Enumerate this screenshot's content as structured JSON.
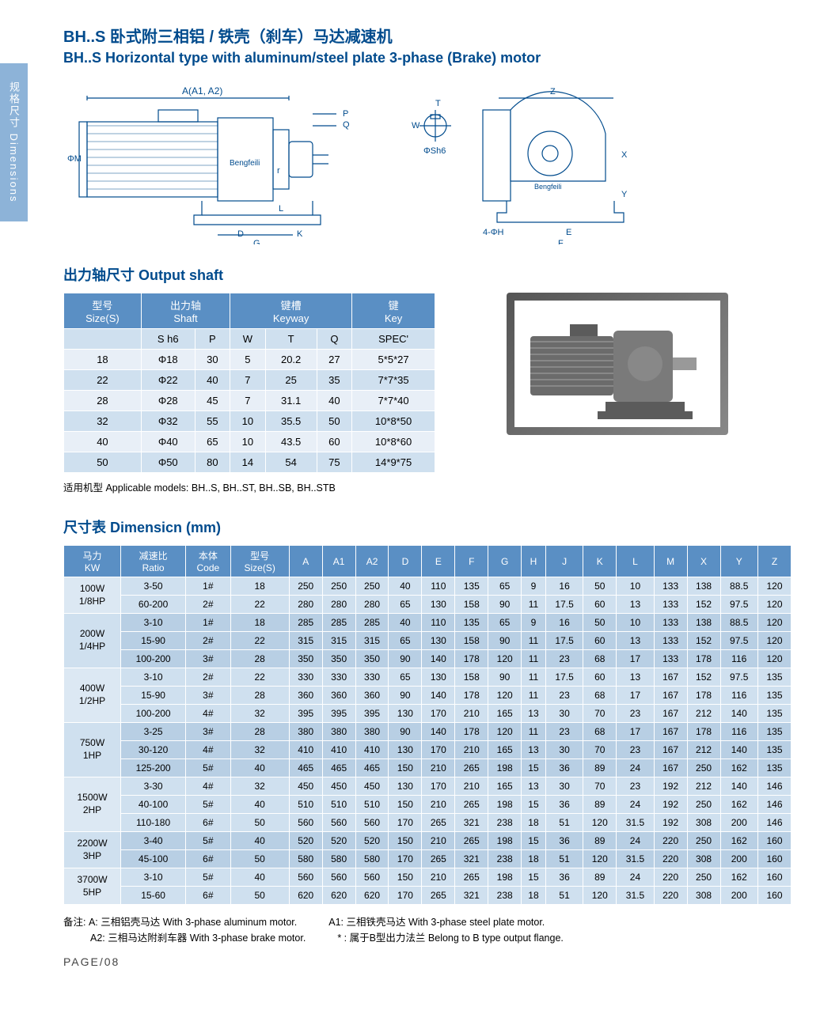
{
  "sideTab": "规格尺寸  Dimensions",
  "titleCn": "BH..S 卧式附三相铝 / 铁壳（刹车）马达减速机",
  "titleEn": "BH..S Horizontal type with aluminum/steel plate 3-phase (Brake) motor",
  "diagramLabels": {
    "A": "A(A1, A2)",
    "P": "P",
    "Q": "Q",
    "r": "r",
    "L": "L",
    "D": "D",
    "K": "K",
    "G": "G",
    "M": "ΦM",
    "T": "T",
    "W": "W",
    "Sh6": "ΦSh6",
    "Z": "Z",
    "X": "X",
    "Y": "Y",
    "E": "E",
    "F": "F",
    "H4": "4-ΦH",
    "logo": "Bengfeili"
  },
  "shaft": {
    "heading": "出力轴尺寸 Output shaft",
    "headers": {
      "size": "型号\nSize(S)",
      "shaft": "出力轴\nShaft",
      "keyway": "键槽\nKeyway",
      "key": "键\nKey"
    },
    "sub": {
      "sh6": "S h6",
      "P": "P",
      "W": "W",
      "T": "T",
      "Q": "Q",
      "spec": "SPEC'"
    },
    "rows": [
      {
        "size": "18",
        "sh6": "Φ18",
        "P": "30",
        "W": "5",
        "T": "20.2",
        "Q": "27",
        "spec": "5*5*27"
      },
      {
        "size": "22",
        "sh6": "Φ22",
        "P": "40",
        "W": "7",
        "T": "25",
        "Q": "35",
        "spec": "7*7*35"
      },
      {
        "size": "28",
        "sh6": "Φ28",
        "P": "45",
        "W": "7",
        "T": "31.1",
        "Q": "40",
        "spec": "7*7*40"
      },
      {
        "size": "32",
        "sh6": "Φ32",
        "P": "55",
        "W": "10",
        "T": "35.5",
        "Q": "50",
        "spec": "10*8*50"
      },
      {
        "size": "40",
        "sh6": "Φ40",
        "P": "65",
        "W": "10",
        "T": "43.5",
        "Q": "60",
        "spec": "10*8*60"
      },
      {
        "size": "50",
        "sh6": "Φ50",
        "P": "80",
        "W": "14",
        "T": "54",
        "Q": "75",
        "spec": "14*9*75"
      }
    ]
  },
  "modelsNote": "适用机型 Applicable models: BH..S, BH..ST, BH..SB, BH..STB",
  "dim": {
    "heading": "尺寸表 Dimensicn (mm)",
    "headers": [
      "马力\nKW",
      "减速比\nRatio",
      "本体\nCode",
      "型号\nSize(S)",
      "A",
      "A1",
      "A2",
      "D",
      "E",
      "F",
      "G",
      "H",
      "J",
      "K",
      "L",
      "M",
      "X",
      "Y",
      "Z"
    ],
    "groups": [
      {
        "kw": "100W\n1/8HP",
        "alt": false,
        "rows": [
          [
            "3-50",
            "1#",
            "18",
            "250",
            "250",
            "250",
            "40",
            "110",
            "135",
            "65",
            "9",
            "16",
            "50",
            "10",
            "133",
            "138",
            "88.5",
            "120"
          ],
          [
            "60-200",
            "2#",
            "22",
            "280",
            "280",
            "280",
            "65",
            "130",
            "158",
            "90",
            "11",
            "17.5",
            "60",
            "13",
            "133",
            "152",
            "97.5",
            "120"
          ]
        ]
      },
      {
        "kw": "200W\n1/4HP",
        "alt": true,
        "rows": [
          [
            "3-10",
            "1#",
            "18",
            "285",
            "285",
            "285",
            "40",
            "110",
            "135",
            "65",
            "9",
            "16",
            "50",
            "10",
            "133",
            "138",
            "88.5",
            "120"
          ],
          [
            "15-90",
            "2#",
            "22",
            "315",
            "315",
            "315",
            "65",
            "130",
            "158",
            "90",
            "11",
            "17.5",
            "60",
            "13",
            "133",
            "152",
            "97.5",
            "120"
          ],
          [
            "100-200",
            "3#",
            "28",
            "350",
            "350",
            "350",
            "90",
            "140",
            "178",
            "120",
            "11",
            "23",
            "68",
            "17",
            "133",
            "178",
            "116",
            "120"
          ]
        ]
      },
      {
        "kw": "400W\n1/2HP",
        "alt": false,
        "rows": [
          [
            "3-10",
            "2#",
            "22",
            "330",
            "330",
            "330",
            "65",
            "130",
            "158",
            "90",
            "11",
            "17.5",
            "60",
            "13",
            "167",
            "152",
            "97.5",
            "135"
          ],
          [
            "15-90",
            "3#",
            "28",
            "360",
            "360",
            "360",
            "90",
            "140",
            "178",
            "120",
            "11",
            "23",
            "68",
            "17",
            "167",
            "178",
            "116",
            "135"
          ],
          [
            "100-200",
            "4#",
            "32",
            "395",
            "395",
            "395",
            "130",
            "170",
            "210",
            "165",
            "13",
            "30",
            "70",
            "23",
            "167",
            "212",
            "140",
            "135"
          ]
        ]
      },
      {
        "kw": "750W\n1HP",
        "alt": true,
        "rows": [
          [
            "3-25",
            "3#",
            "28",
            "380",
            "380",
            "380",
            "90",
            "140",
            "178",
            "120",
            "11",
            "23",
            "68",
            "17",
            "167",
            "178",
            "116",
            "135"
          ],
          [
            "30-120",
            "4#",
            "32",
            "410",
            "410",
            "410",
            "130",
            "170",
            "210",
            "165",
            "13",
            "30",
            "70",
            "23",
            "167",
            "212",
            "140",
            "135"
          ],
          [
            "125-200",
            "5#",
            "40",
            "465",
            "465",
            "465",
            "150",
            "210",
            "265",
            "198",
            "15",
            "36",
            "89",
            "24",
            "167",
            "250",
            "162",
            "135"
          ]
        ]
      },
      {
        "kw": "1500W\n2HP",
        "alt": false,
        "rows": [
          [
            "3-30",
            "4#",
            "32",
            "450",
            "450",
            "450",
            "130",
            "170",
            "210",
            "165",
            "13",
            "30",
            "70",
            "23",
            "192",
            "212",
            "140",
            "146"
          ],
          [
            "40-100",
            "5#",
            "40",
            "510",
            "510",
            "510",
            "150",
            "210",
            "265",
            "198",
            "15",
            "36",
            "89",
            "24",
            "192",
            "250",
            "162",
            "146"
          ],
          [
            "110-180",
            "6#",
            "50",
            "560",
            "560",
            "560",
            "170",
            "265",
            "321",
            "238",
            "18",
            "51",
            "120",
            "31.5",
            "192",
            "308",
            "200",
            "146"
          ]
        ]
      },
      {
        "kw": "2200W\n3HP",
        "alt": true,
        "rows": [
          [
            "3-40",
            "5#",
            "40",
            "520",
            "520",
            "520",
            "150",
            "210",
            "265",
            "198",
            "15",
            "36",
            "89",
            "24",
            "220",
            "250",
            "162",
            "160"
          ],
          [
            "45-100",
            "6#",
            "50",
            "580",
            "580",
            "580",
            "170",
            "265",
            "321",
            "238",
            "18",
            "51",
            "120",
            "31.5",
            "220",
            "308",
            "200",
            "160"
          ]
        ]
      },
      {
        "kw": "3700W\n5HP",
        "alt": false,
        "rows": [
          [
            "3-10",
            "5#",
            "40",
            "560",
            "560",
            "560",
            "150",
            "210",
            "265",
            "198",
            "15",
            "36",
            "89",
            "24",
            "220",
            "250",
            "162",
            "160"
          ],
          [
            "15-60",
            "6#",
            "50",
            "620",
            "620",
            "620",
            "170",
            "265",
            "321",
            "238",
            "18",
            "51",
            "120",
            "31.5",
            "220",
            "308",
            "200",
            "160"
          ]
        ]
      }
    ]
  },
  "footnotes": {
    "label": "备注:",
    "a": "A: 三相铝壳马达 With 3-phase aluminum motor.",
    "a1": "A1: 三相铁壳马达 With 3-phase steel plate motor.",
    "a2": "A2: 三相马达附刹车器 With 3-phase brake motor.",
    "star": "* : 属于B型出力法兰 Belong to B type output flange."
  },
  "pageNum": "PAGE/08",
  "colors": {
    "header_bg": "#5a8fc4",
    "row_light": "#e8eff7",
    "row_med": "#cfe0ef",
    "row_dark": "#b8cfe4",
    "title": "#004b8d",
    "sidetab": "#8db3d8"
  }
}
